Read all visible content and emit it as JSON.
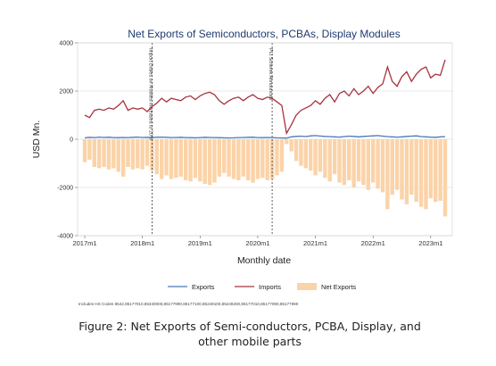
{
  "chart_data": {
    "type": "line",
    "title": "Net Exports of Semiconductors, PCBAs, Display Modules",
    "xlabel": "Monthly date",
    "ylabel": "USD Mn.",
    "x_tick_labels": [
      "2017m1",
      "2018m1",
      "2019m1",
      "2020m1",
      "2021m1",
      "2022m1",
      "2023m1"
    ],
    "y_ticks": [
      4000,
      2000,
      0,
      -2000,
      -4000
    ],
    "ylim": [
      -4000,
      4000
    ],
    "grid": true,
    "legend_position": "bottom",
    "note": "Includes HS Codes 8542,85177010,85340000,85177990,85177100,85249100,85249200,85177010,85177090,85177990",
    "annotations": [
      {
        "x": "2018m3",
        "text": "Import Duties on Mobiles increased to 20%"
      },
      {
        "x": "2020m4",
        "text": "PLI Scheme Announced"
      }
    ],
    "colors": {
      "exports": "#4a78b5",
      "imports": "#a8323e",
      "net_exports": "#fbd3a8"
    },
    "series": [
      {
        "name": "Exports",
        "type": "line",
        "values": [
          60,
          80,
          70,
          90,
          75,
          85,
          70,
          65,
          75,
          70,
          80,
          90,
          75,
          80,
          70,
          85,
          90,
          80,
          70,
          75,
          80,
          70,
          65,
          60,
          70,
          80,
          75,
          70,
          65,
          60,
          55,
          60,
          70,
          75,
          80,
          85,
          70,
          65,
          75,
          70,
          60,
          55,
          50,
          100,
          120,
          130,
          110,
          140,
          150,
          135,
          120,
          110,
          100,
          90,
          110,
          130,
          120,
          100,
          120,
          130,
          140,
          150,
          130,
          110,
          100,
          90,
          100,
          120,
          130,
          140,
          110,
          100,
          90,
          80,
          100,
          110
        ]
      },
      {
        "name": "Imports",
        "type": "line",
        "values": [
          1000,
          900,
          1200,
          1250,
          1200,
          1300,
          1250,
          1400,
          1600,
          1200,
          1300,
          1250,
          1300,
          1150,
          1350,
          1500,
          1700,
          1550,
          1700,
          1650,
          1600,
          1750,
          1800,
          1650,
          1800,
          1900,
          1950,
          1850,
          1600,
          1450,
          1600,
          1700,
          1750,
          1600,
          1750,
          1850,
          1700,
          1650,
          1750,
          1700,
          1550,
          1400,
          250,
          600,
          1000,
          1200,
          1300,
          1400,
          1600,
          1450,
          1700,
          1850,
          1550,
          1900,
          2000,
          1800,
          2100,
          1850,
          2000,
          2200,
          1900,
          2150,
          2300,
          3000,
          2400,
          2200,
          2600,
          2800,
          2400,
          2700,
          2900,
          3000,
          2550,
          2700,
          2650,
          3300
        ]
      },
      {
        "name": "Net Exports",
        "type": "bar",
        "values": [
          -950,
          -850,
          -1150,
          -1200,
          -1150,
          -1250,
          -1200,
          -1350,
          -1550,
          -1150,
          -1250,
          -1200,
          -1250,
          -1100,
          -1300,
          -1450,
          -1650,
          -1500,
          -1650,
          -1600,
          -1550,
          -1700,
          -1750,
          -1600,
          -1750,
          -1850,
          -1900,
          -1800,
          -1550,
          -1400,
          -1550,
          -1650,
          -1700,
          -1550,
          -1700,
          -1800,
          -1650,
          -1600,
          -1700,
          -1650,
          -1500,
          -1350,
          -200,
          -500,
          -900,
          -1100,
          -1200,
          -1300,
          -1500,
          -1350,
          -1600,
          -1750,
          -1450,
          -1800,
          -1900,
          -1700,
          -2000,
          -1750,
          -1900,
          -2100,
          -1800,
          -2050,
          -2200,
          -2900,
          -2300,
          -2100,
          -2500,
          -2700,
          -2300,
          -2600,
          -2800,
          -2900,
          -2450,
          -2600,
          -2550,
          -3200
        ]
      }
    ]
  },
  "caption": "Figure 2: Net Exports of Semi-conductors, PCBA, Display, and other mobile parts"
}
